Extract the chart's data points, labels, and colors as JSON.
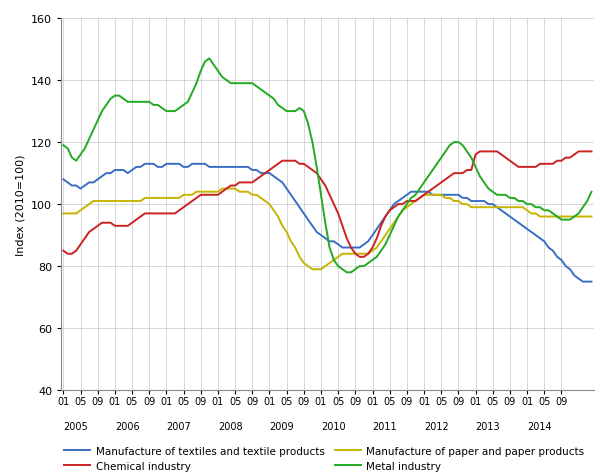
{
  "title": "",
  "ylabel": "Index (2010=100)",
  "ylim": [
    40,
    160
  ],
  "yticks": [
    40,
    60,
    80,
    100,
    120,
    140,
    160
  ],
  "colors": {
    "textiles": "#3a6ec4",
    "paper": "#c8b400",
    "chemical": "#cc2222",
    "metal": "#22aa22"
  },
  "legend": [
    "Manufacture of textiles and textile products",
    "Manufacture of paper and paper products",
    "Chemical industry",
    "Metal industry"
  ],
  "textiles": [
    108,
    107,
    106,
    106,
    105,
    106,
    107,
    107,
    108,
    109,
    110,
    110,
    111,
    111,
    111,
    110,
    111,
    112,
    112,
    113,
    113,
    113,
    112,
    112,
    113,
    113,
    113,
    113,
    112,
    112,
    113,
    113,
    113,
    113,
    112,
    112,
    112,
    112,
    112,
    112,
    112,
    112,
    112,
    112,
    111,
    111,
    110,
    110,
    110,
    109,
    108,
    107,
    105,
    103,
    101,
    99,
    97,
    95,
    93,
    91,
    90,
    89,
    88,
    88,
    87,
    86,
    86,
    86,
    86,
    86,
    87,
    88,
    90,
    92,
    94,
    96,
    98,
    100,
    101,
    102,
    103,
    104,
    104,
    104,
    104,
    104,
    103,
    103,
    103,
    103,
    103,
    103,
    103,
    102,
    102,
    101,
    101,
    101,
    101,
    100,
    100,
    99,
    98,
    97,
    96,
    95,
    94,
    93,
    92,
    91,
    90,
    89,
    88,
    86,
    85,
    83,
    82,
    80,
    79,
    77,
    76,
    75,
    75,
    75
  ],
  "paper": [
    97,
    97,
    97,
    97,
    98,
    99,
    100,
    101,
    101,
    101,
    101,
    101,
    101,
    101,
    101,
    101,
    101,
    101,
    101,
    102,
    102,
    102,
    102,
    102,
    102,
    102,
    102,
    102,
    103,
    103,
    103,
    104,
    104,
    104,
    104,
    104,
    104,
    105,
    105,
    105,
    105,
    104,
    104,
    104,
    103,
    103,
    102,
    101,
    100,
    98,
    96,
    93,
    91,
    88,
    86,
    83,
    81,
    80,
    79,
    79,
    79,
    80,
    81,
    82,
    83,
    84,
    84,
    84,
    84,
    84,
    84,
    84,
    85,
    86,
    88,
    90,
    92,
    94,
    96,
    98,
    99,
    100,
    101,
    102,
    103,
    103,
    103,
    103,
    103,
    102,
    102,
    101,
    101,
    100,
    100,
    99,
    99,
    99,
    99,
    99,
    99,
    99,
    99,
    99,
    99,
    99,
    99,
    99,
    98,
    97,
    97,
    96,
    96,
    96,
    96,
    96,
    96,
    96,
    96,
    96,
    96,
    96,
    96,
    96
  ],
  "chemical": [
    85,
    84,
    84,
    85,
    87,
    89,
    91,
    92,
    93,
    94,
    94,
    94,
    93,
    93,
    93,
    93,
    94,
    95,
    96,
    97,
    97,
    97,
    97,
    97,
    97,
    97,
    97,
    98,
    99,
    100,
    101,
    102,
    103,
    103,
    103,
    103,
    103,
    104,
    105,
    106,
    106,
    107,
    107,
    107,
    107,
    108,
    109,
    110,
    111,
    112,
    113,
    114,
    114,
    114,
    114,
    113,
    113,
    112,
    111,
    110,
    108,
    106,
    103,
    100,
    97,
    93,
    89,
    86,
    84,
    83,
    83,
    84,
    86,
    89,
    93,
    96,
    98,
    99,
    100,
    100,
    101,
    101,
    101,
    102,
    103,
    104,
    105,
    106,
    107,
    108,
    109,
    110,
    110,
    110,
    111,
    111,
    116,
    117,
    117,
    117,
    117,
    117,
    116,
    115,
    114,
    113,
    112,
    112,
    112,
    112,
    112,
    113,
    113,
    113,
    113,
    114,
    114,
    115,
    115,
    116,
    117,
    117,
    117,
    117
  ],
  "metal": [
    119,
    118,
    115,
    114,
    116,
    118,
    121,
    124,
    127,
    130,
    132,
    134,
    135,
    135,
    134,
    133,
    133,
    133,
    133,
    133,
    133,
    132,
    132,
    131,
    130,
    130,
    130,
    131,
    132,
    133,
    136,
    139,
    143,
    146,
    147,
    145,
    143,
    141,
    140,
    139,
    139,
    139,
    139,
    139,
    139,
    138,
    137,
    136,
    135,
    134,
    132,
    131,
    130,
    130,
    130,
    131,
    130,
    126,
    120,
    112,
    103,
    94,
    86,
    82,
    80,
    79,
    78,
    78,
    79,
    80,
    80,
    81,
    82,
    83,
    85,
    87,
    90,
    93,
    96,
    98,
    100,
    102,
    103,
    105,
    107,
    109,
    111,
    113,
    115,
    117,
    119,
    120,
    120,
    119,
    117,
    115,
    112,
    109,
    107,
    105,
    104,
    103,
    103,
    103,
    102,
    102,
    101,
    101,
    100,
    100,
    99,
    99,
    98,
    98,
    97,
    96,
    95,
    95,
    95,
    96,
    97,
    99,
    101,
    104
  ],
  "background_color": "#ffffff",
  "grid_color": "#c8c8c8"
}
